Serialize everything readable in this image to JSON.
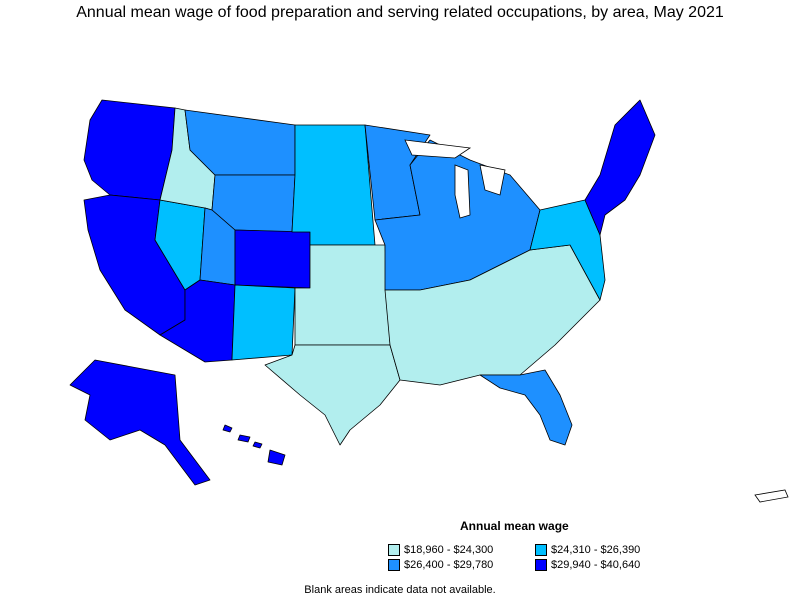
{
  "title": "Annual mean wage of food preparation and serving related occupations, by area, May 2021",
  "legend": {
    "title": "Annual mean wage",
    "items": [
      {
        "label": "$18,960 - $24,300",
        "color": "#b2eeee"
      },
      {
        "label": "$24,310 - $26,390",
        "color": "#00bfff"
      },
      {
        "label": "$26,400 - $29,780",
        "color": "#1e90ff"
      },
      {
        "label": "$29,940 - $40,640",
        "color": "#0000ff"
      }
    ]
  },
  "footnote": "Blank areas indicate data not available.",
  "colors": {
    "tier1": "#b2eeee",
    "tier2": "#00bfff",
    "tier3": "#1e90ff",
    "tier4": "#0000ff",
    "border": "#000000"
  },
  "regions": [
    {
      "name": "Pacific Northwest",
      "tier": 4
    },
    {
      "name": "California",
      "tier": 4
    },
    {
      "name": "Nevada",
      "tier": 2
    },
    {
      "name": "Idaho",
      "tier": 1
    },
    {
      "name": "Montana",
      "tier": 3
    },
    {
      "name": "Wyoming",
      "tier": 3
    },
    {
      "name": "Utah",
      "tier": 3
    },
    {
      "name": "Colorado",
      "tier": 4
    },
    {
      "name": "Arizona",
      "tier": 4
    },
    {
      "name": "New Mexico",
      "tier": 2
    },
    {
      "name": "Northern Plains",
      "tier": 2
    },
    {
      "name": "Minnesota",
      "tier": 3
    },
    {
      "name": "Kansas / Oklahoma",
      "tier": 1
    },
    {
      "name": "Texas",
      "tier": 1
    },
    {
      "name": "Midwest",
      "tier": 3
    },
    {
      "name": "Southeast",
      "tier": 1
    },
    {
      "name": "Florida",
      "tier": 3
    },
    {
      "name": "Mid-Atlantic",
      "tier": 2
    },
    {
      "name": "Northeast",
      "tier": 4
    },
    {
      "name": "Alaska",
      "tier": 4
    },
    {
      "name": "Hawaii",
      "tier": 4
    }
  ]
}
